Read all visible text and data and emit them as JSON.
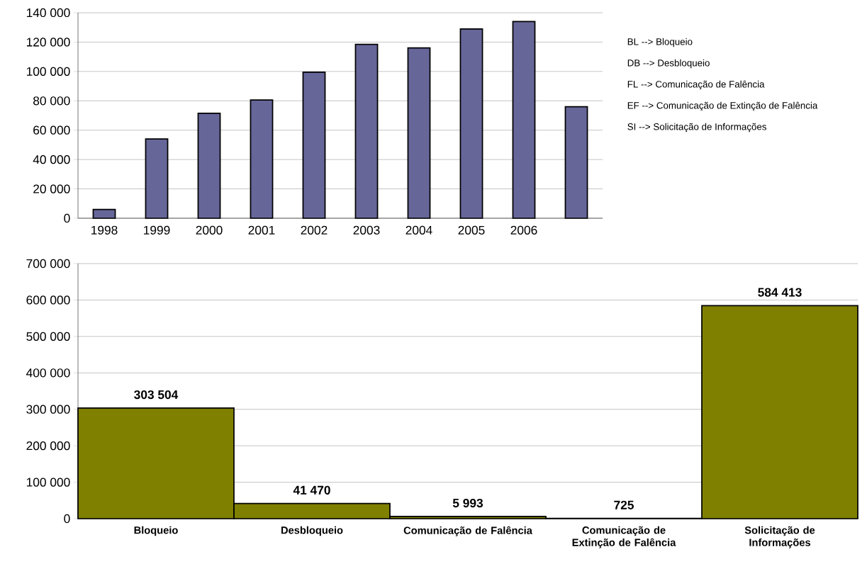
{
  "chart_data": [
    {
      "type": "bar",
      "categories": [
        "1998",
        "1999",
        "2000",
        "2001",
        "2002",
        "2003",
        "2004",
        "2005",
        "2006",
        null
      ],
      "values": [
        6000,
        54000,
        71500,
        80500,
        99500,
        118500,
        116000,
        129000,
        134000,
        76000
      ],
      "color": "#666699",
      "ylim": [
        0,
        140000
      ],
      "yticks": [
        {
          "value": 0,
          "label": "0"
        },
        {
          "value": 20000,
          "label": "20 000"
        },
        {
          "value": 40000,
          "label": "40 000"
        },
        {
          "value": 60000,
          "label": "60 000"
        },
        {
          "value": 80000,
          "label": "80 000"
        },
        {
          "value": 100000,
          "label": "100 000"
        },
        {
          "value": 120000,
          "label": "120 000"
        },
        {
          "value": 140000,
          "label": "140 000"
        }
      ],
      "grid": "y",
      "annotations": [
        "BL --> Bloqueio",
        "DB --> Desbloqueio",
        "FL --> Comunicação de Falência",
        "EF --> Comunicação de Extinção de Falência",
        "SI --> Solicitação de Informações"
      ]
    },
    {
      "type": "bar",
      "categories": [
        "Bloqueio",
        "Desbloqueio",
        "Comunicação de Falência",
        "Comunicação de Extinção de Falência",
        "Solicitação de Informações"
      ],
      "values": [
        303504,
        41470,
        5993,
        725,
        584413
      ],
      "value_labels": [
        "303 504",
        "41 470",
        "5 993",
        "725",
        "584 413"
      ],
      "color": "#808000",
      "ylim": [
        0,
        700000
      ],
      "yticks": [
        {
          "value": 0,
          "label": "0"
        },
        {
          "value": 100000,
          "label": "100 000"
        },
        {
          "value": 200000,
          "label": "200 000"
        },
        {
          "value": 300000,
          "label": "300 000"
        },
        {
          "value": 400000,
          "label": "400 000"
        },
        {
          "value": 500000,
          "label": "500 000"
        },
        {
          "value": 600000,
          "label": "600 000"
        },
        {
          "value": 700000,
          "label": "700 000"
        }
      ],
      "grid": "y"
    }
  ]
}
